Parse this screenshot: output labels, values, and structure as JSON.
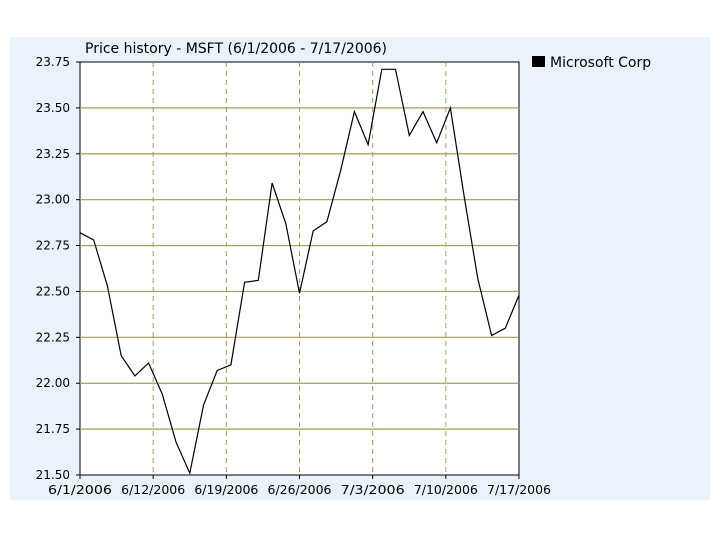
{
  "chart_data": {
    "type": "line",
    "title": "Price history - MSFT (6/1/2006 - 7/17/2006)",
    "xlabel": "",
    "ylabel": "",
    "ylim": [
      21.5,
      23.75
    ],
    "yticks": [
      "23.75",
      "23.50",
      "23.25",
      "23.00",
      "22.75",
      "22.50",
      "22.25",
      "22.00",
      "21.75",
      "21.50"
    ],
    "xticks": [
      "6/1/2006",
      "6/12/2006",
      "6/19/2006",
      "6/26/2006",
      "7/3/2006",
      "7/10/2006",
      "7/17/2006"
    ],
    "grid": true,
    "legend": "right",
    "colors": {
      "line": "#000000",
      "grid_h": "#a39b59",
      "grid_v": "#a39b59",
      "plot_bg": "#ffffff",
      "frame_bg": "#eaf3fb"
    },
    "series": [
      {
        "name": "Microsoft Corp",
        "values": [
          22.82,
          22.78,
          22.53,
          22.15,
          22.04,
          22.11,
          21.94,
          21.68,
          21.51,
          21.88,
          22.07,
          22.1,
          22.55,
          22.56,
          23.09,
          22.87,
          22.49,
          22.83,
          22.88,
          23.16,
          23.48,
          23.3,
          23.71,
          23.71,
          23.35,
          23.48,
          23.31,
          23.5,
          23.02,
          22.57,
          22.26,
          22.3,
          22.48
        ]
      }
    ]
  }
}
